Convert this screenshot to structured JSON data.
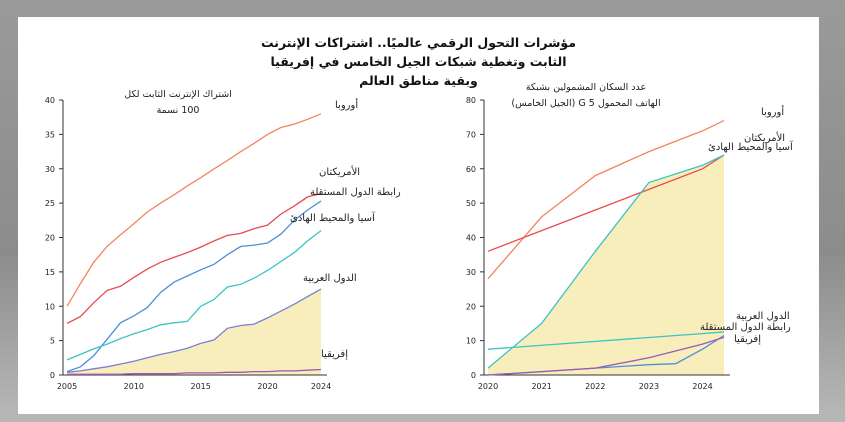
{
  "page": {
    "title_lines": [
      "مؤشرات التحول الرقمي عالميًا.. اشتراكات الإنترنت",
      "الثابت وتغطية شبكات الجيل الخامس في إفريقيا",
      "وبقية مناطق العالم"
    ]
  },
  "colors": {
    "europe": "#f4845f",
    "americas": "#e74c4c",
    "cis": "#4a90d9",
    "asia_pacific": "#3cc4c4",
    "arab_states": "#7b7fd4",
    "africa": "#9b59b6",
    "fill": "#f7eebc"
  },
  "chart_data": [
    {
      "type": "line",
      "title": "اشتراك الإنترنت الثابت لكل 100 نسمة",
      "title_lines": [
        "اشتراك الإنترنت الثابت لكل",
        "100 نسمة"
      ],
      "xlabel": "",
      "ylabel": "",
      "xlim": [
        2005,
        2024
      ],
      "ylim": [
        0,
        40
      ],
      "xticks": [
        2005,
        2010,
        2015,
        2020,
        2024
      ],
      "yticks": [
        0,
        5,
        10,
        15,
        20,
        25,
        30,
        35,
        40
      ],
      "grid": false,
      "shaded_series": "الدول العربية",
      "series": [
        {
          "name": "أوروبا",
          "key": "europe",
          "x": [
            2005,
            2006,
            2007,
            2008,
            2009,
            2010,
            2011,
            2012,
            2013,
            2014,
            2015,
            2016,
            2017,
            2018,
            2019,
            2020,
            2021,
            2022,
            2023,
            2024
          ],
          "values": [
            10,
            13.3,
            16.4,
            18.7,
            20.4,
            22,
            23.7,
            25,
            26.2,
            27.5,
            28.7,
            30,
            31.2,
            32.5,
            33.7,
            35,
            36,
            36.5,
            37.2,
            38
          ]
        },
        {
          "name": "الأمريكتان",
          "key": "americas",
          "x": [
            2005,
            2006,
            2007,
            2008,
            2009,
            2010,
            2011,
            2012,
            2013,
            2014,
            2015,
            2016,
            2017,
            2018,
            2019,
            2020,
            2021,
            2022,
            2023,
            2024
          ],
          "values": [
            7.5,
            8.5,
            10.5,
            12.3,
            12.9,
            14.2,
            15.4,
            16.4,
            17.1,
            17.8,
            18.6,
            19.5,
            20.3,
            20.6,
            21.3,
            21.8,
            23.4,
            24.6,
            25.9,
            26.4
          ]
        },
        {
          "name": "رابطة الدول المستقلة",
          "key": "cis",
          "x": [
            2005,
            2006,
            2007,
            2008,
            2009,
            2010,
            2011,
            2012,
            2013,
            2014,
            2015,
            2016,
            2017,
            2018,
            2019,
            2020,
            2021,
            2022,
            2023,
            2024
          ],
          "values": [
            0.5,
            1.2,
            2.8,
            5.2,
            7.6,
            8.6,
            9.8,
            12,
            13.5,
            14.4,
            15.3,
            16.1,
            17.5,
            18.7,
            18.9,
            19.2,
            20.5,
            22.5,
            24,
            25.3
          ]
        },
        {
          "name": "آسيا والمحيط الهادئ",
          "key": "asia_pacific",
          "x": [
            2005,
            2006,
            2007,
            2008,
            2009,
            2010,
            2011,
            2012,
            2013,
            2014,
            2015,
            2016,
            2017,
            2018,
            2019,
            2020,
            2021,
            2022,
            2023,
            2024
          ],
          "values": [
            2.2,
            3,
            3.8,
            4.5,
            5.3,
            6,
            6.6,
            7.3,
            7.6,
            7.8,
            10,
            11,
            12.8,
            13.2,
            14.1,
            15.2,
            16.5,
            17.8,
            19.5,
            21
          ]
        },
        {
          "name": "الدول العربية",
          "key": "arab_states",
          "x": [
            2005,
            2006,
            2007,
            2008,
            2009,
            2010,
            2011,
            2012,
            2013,
            2014,
            2015,
            2016,
            2017,
            2018,
            2019,
            2020,
            2021,
            2022,
            2023,
            2024
          ],
          "values": [
            0.4,
            0.6,
            0.9,
            1.2,
            1.6,
            2,
            2.5,
            3,
            3.4,
            3.9,
            4.6,
            5.1,
            6.8,
            7.2,
            7.4,
            8.3,
            9.3,
            10.3,
            11.4,
            12.5
          ]
        },
        {
          "name": "إفريقيا",
          "key": "africa",
          "x": [
            2005,
            2006,
            2007,
            2008,
            2009,
            2010,
            2011,
            2012,
            2013,
            2014,
            2015,
            2016,
            2017,
            2018,
            2019,
            2020,
            2021,
            2022,
            2023,
            2024
          ],
          "values": [
            0.1,
            0.1,
            0.1,
            0.1,
            0.1,
            0.2,
            0.2,
            0.2,
            0.2,
            0.3,
            0.3,
            0.3,
            0.4,
            0.4,
            0.5,
            0.5,
            0.6,
            0.6,
            0.7,
            0.8
          ]
        }
      ]
    },
    {
      "type": "line",
      "title": "عدد السكان المشمولين بشبكة الهاتف المحمول 5 G (الجيل الخامس)",
      "title_lines": [
        "عدد السكان المشمولين بشبكة",
        "الهاتف المحمول 5 G (الجيل الخامس)"
      ],
      "xlabel": "",
      "ylabel": "",
      "xlim": [
        2020,
        2024.4
      ],
      "ylim": [
        0,
        80
      ],
      "xticks": [
        2020,
        2021,
        2022,
        2023,
        2024
      ],
      "yticks": [
        0,
        10,
        20,
        30,
        40,
        50,
        60,
        70,
        80
      ],
      "grid": false,
      "shaded_series": "آسيا والمحيط الهادئ",
      "series": [
        {
          "name": "أوروبا",
          "key": "europe",
          "x": [
            2020,
            2021,
            2022,
            2023,
            2024,
            2024.4
          ],
          "values": [
            28,
            46,
            58,
            65,
            71,
            74
          ]
        },
        {
          "name": "الأمريكتان",
          "key": "americas",
          "x": [
            2020,
            2021,
            2022,
            2023,
            2024,
            2024.4
          ],
          "values": [
            36,
            42,
            48,
            54,
            60,
            64
          ]
        },
        {
          "name": "آسيا والمحيط الهادئ",
          "key": "asia_pacific",
          "x": [
            2020,
            2021,
            2022,
            2023,
            2024,
            2024.4
          ],
          "values": [
            2,
            15,
            36,
            56,
            61,
            64
          ]
        },
        {
          "name": "الدول العربية",
          "key": "asia_pacific_cyan",
          "x": [
            2020,
            2024.4
          ],
          "values": [
            7.5,
            12.5
          ]
        },
        {
          "name": "رابطة الدول المستقلة",
          "key": "cis",
          "x": [
            2020,
            2021,
            2022,
            2023,
            2023.5,
            2024,
            2024.4
          ],
          "values": [
            0,
            1,
            2,
            3,
            3.3,
            7.5,
            11.5
          ]
        },
        {
          "name": "إفريقيا",
          "key": "africa",
          "x": [
            2020,
            2021,
            2022,
            2023,
            2024,
            2024.4
          ],
          "values": [
            0,
            1,
            2,
            5,
            9,
            11
          ]
        }
      ]
    }
  ]
}
